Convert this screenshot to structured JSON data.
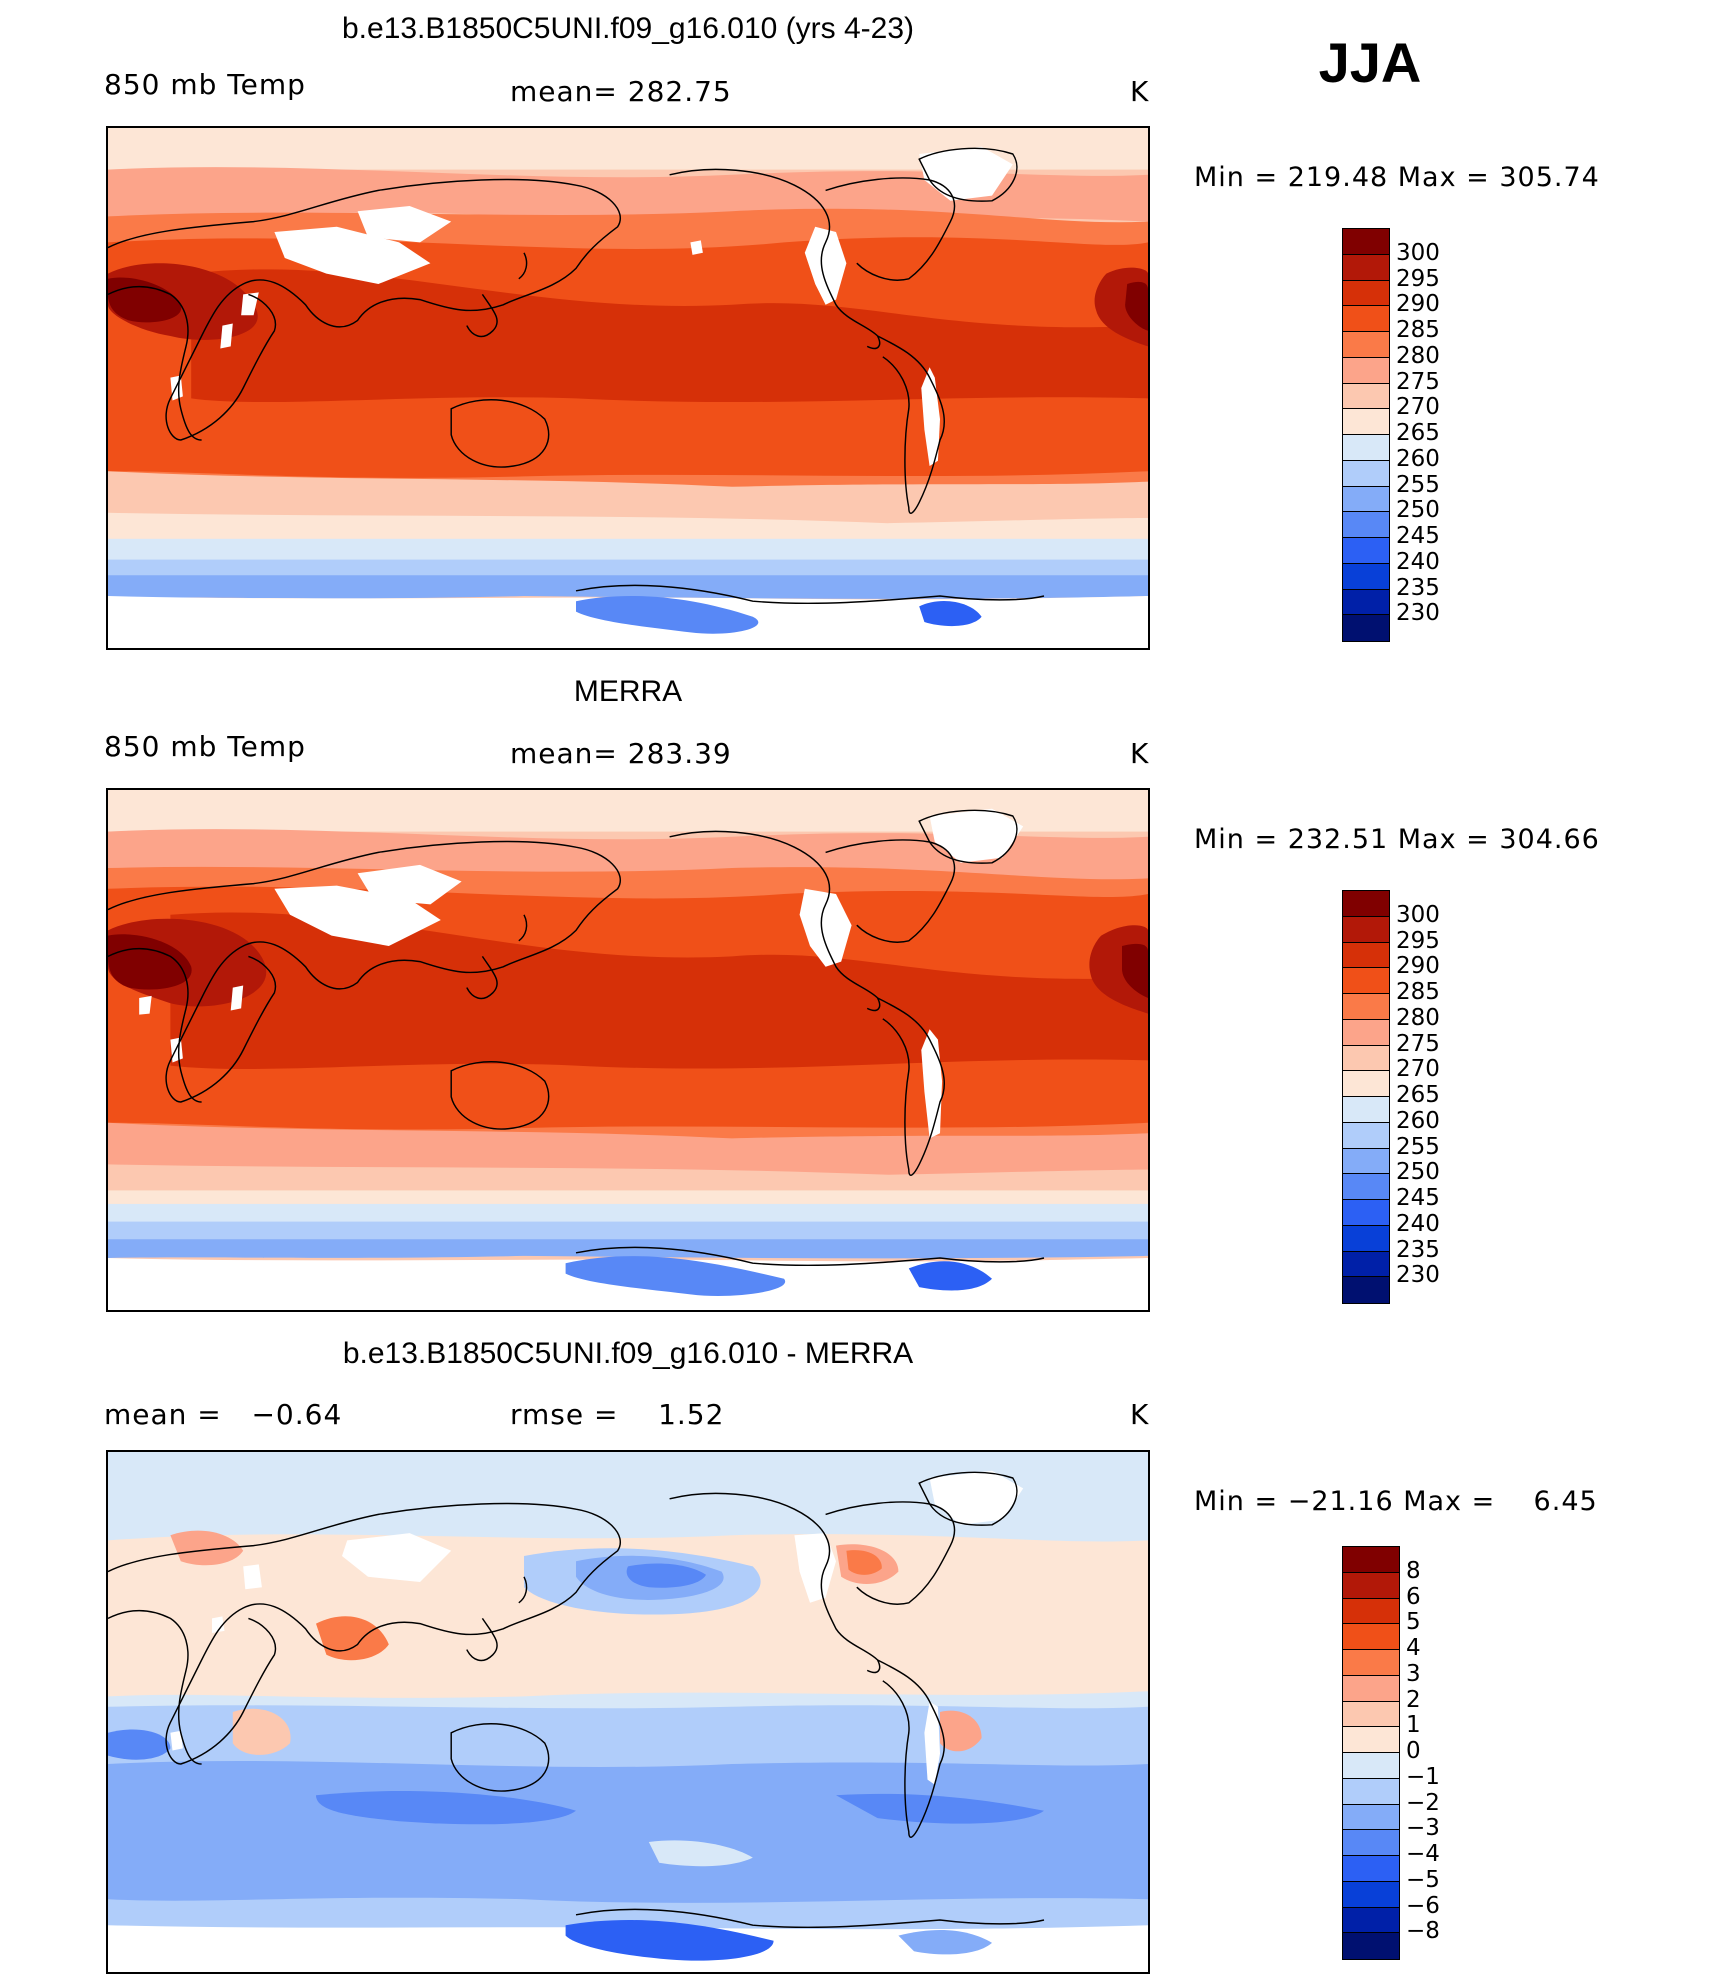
{
  "season": "JJA",
  "panels": [
    {
      "title": "b.e13.B1850C5UNI.f09_g16.010 (yrs 4-23)",
      "left_label": "850 mb Temp",
      "center_label": "mean= 282.75",
      "right_label": "K",
      "minmax": "Min = 219.48 Max = 305.74",
      "colorbar": {
        "colors": [
          "#800000",
          "#b21808",
          "#d63008",
          "#f05018",
          "#fa7a48",
          "#fca48a",
          "#fcc8b0",
          "#fde6d6",
          "#d8e8f8",
          "#b0cdfa",
          "#84acf8",
          "#5888f6",
          "#2c60f4",
          "#0840d8",
          "#0020a8",
          "#001070"
        ],
        "labels": [
          "300",
          "295",
          "290",
          "285",
          "280",
          "275",
          "270",
          "265",
          "260",
          "255",
          "250",
          "245",
          "240",
          "235",
          "230"
        ]
      },
      "field": "model"
    },
    {
      "title": "MERRA",
      "left_label": "850 mb Temp",
      "center_label": "mean= 283.39",
      "right_label": "K",
      "minmax": "Min = 232.51 Max = 304.66",
      "colorbar": {
        "colors": [
          "#800000",
          "#b21808",
          "#d63008",
          "#f05018",
          "#fa7a48",
          "#fca48a",
          "#fcc8b0",
          "#fde6d6",
          "#d8e8f8",
          "#b0cdfa",
          "#84acf8",
          "#5888f6",
          "#2c60f4",
          "#0840d8",
          "#0020a8",
          "#001070"
        ],
        "labels": [
          "300",
          "295",
          "290",
          "285",
          "280",
          "275",
          "270",
          "265",
          "260",
          "255",
          "250",
          "245",
          "240",
          "235",
          "230"
        ]
      },
      "field": "obs"
    },
    {
      "title": "b.e13.B1850C5UNI.f09_g16.010 - MERRA",
      "left_label": "mean =   −0.64",
      "center_label": "rmse =    1.52",
      "right_label": "K",
      "minmax": "Min = −21.16 Max =    6.45",
      "colorbar": {
        "colors": [
          "#800000",
          "#b21808",
          "#d63008",
          "#f05018",
          "#fa7a48",
          "#fca48a",
          "#fcc8b0",
          "#fde6d6",
          "#d8e8f8",
          "#b0cdfa",
          "#84acf8",
          "#5888f6",
          "#2c60f4",
          "#0840d8",
          "#0020a8",
          "#001070"
        ],
        "labels": [
          "8",
          "6",
          "5",
          "4",
          "3",
          "2",
          "1",
          "0",
          "−1",
          "−2",
          "−3",
          "−4",
          "−5",
          "−6",
          "−8"
        ]
      },
      "field": "diff"
    }
  ]
}
